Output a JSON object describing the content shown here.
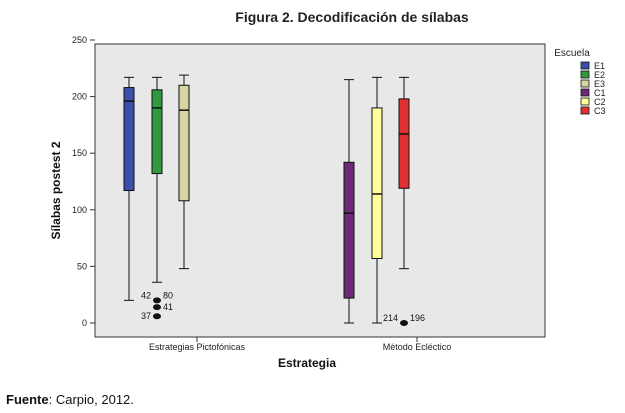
{
  "source": {
    "prefix": "Fuente",
    "text": ": Carpio, 2012."
  },
  "chart_data": {
    "type": "boxplot",
    "title": "Figura 2. Decodificación de sílabas",
    "xlabel": "Estrategia",
    "ylabel": "Sílabas postest 2",
    "ylim": [
      0,
      250
    ],
    "yticks": [
      0,
      50,
      100,
      150,
      200,
      250
    ],
    "grid": false,
    "legend": {
      "title": "Escuela",
      "placement": "top-right"
    },
    "categories": [
      "Estrategias Pictofónicas",
      "Método Ecléctico"
    ],
    "series": [
      {
        "name": "E1",
        "color": "#3a4fa8",
        "category": 0,
        "min": 20,
        "q1": 117,
        "median": 196,
        "q3": 208,
        "max": 217,
        "outliers": []
      },
      {
        "name": "E2",
        "color": "#2f9a3e",
        "category": 0,
        "min": 36,
        "q1": 132,
        "median": 190,
        "q3": 206,
        "max": 217,
        "outliers": [
          {
            "value": 20,
            "labels": [
              "42",
              "80"
            ]
          },
          {
            "value": 14,
            "labels": [
              "41"
            ]
          },
          {
            "value": 6,
            "labels": [
              "37"
            ]
          }
        ]
      },
      {
        "name": "E3",
        "color": "#d8d5a2",
        "category": 0,
        "min": 48,
        "q1": 108,
        "median": 188,
        "q3": 210,
        "max": 219,
        "outliers": []
      },
      {
        "name": "C1",
        "color": "#6e2a78",
        "category": 1,
        "min": 0,
        "q1": 22,
        "median": 97,
        "q3": 142,
        "max": 215,
        "outliers": []
      },
      {
        "name": "C2",
        "color": "#ffff99",
        "category": 1,
        "min": 0,
        "q1": 57,
        "median": 114,
        "q3": 190,
        "max": 217,
        "outliers": []
      },
      {
        "name": "C3",
        "color": "#e03232",
        "category": 1,
        "min": 48,
        "q1": 119,
        "median": 167,
        "q3": 198,
        "max": 217,
        "outliers": [
          {
            "value": 0,
            "labels": [
              "214",
              "196"
            ]
          }
        ]
      }
    ]
  }
}
